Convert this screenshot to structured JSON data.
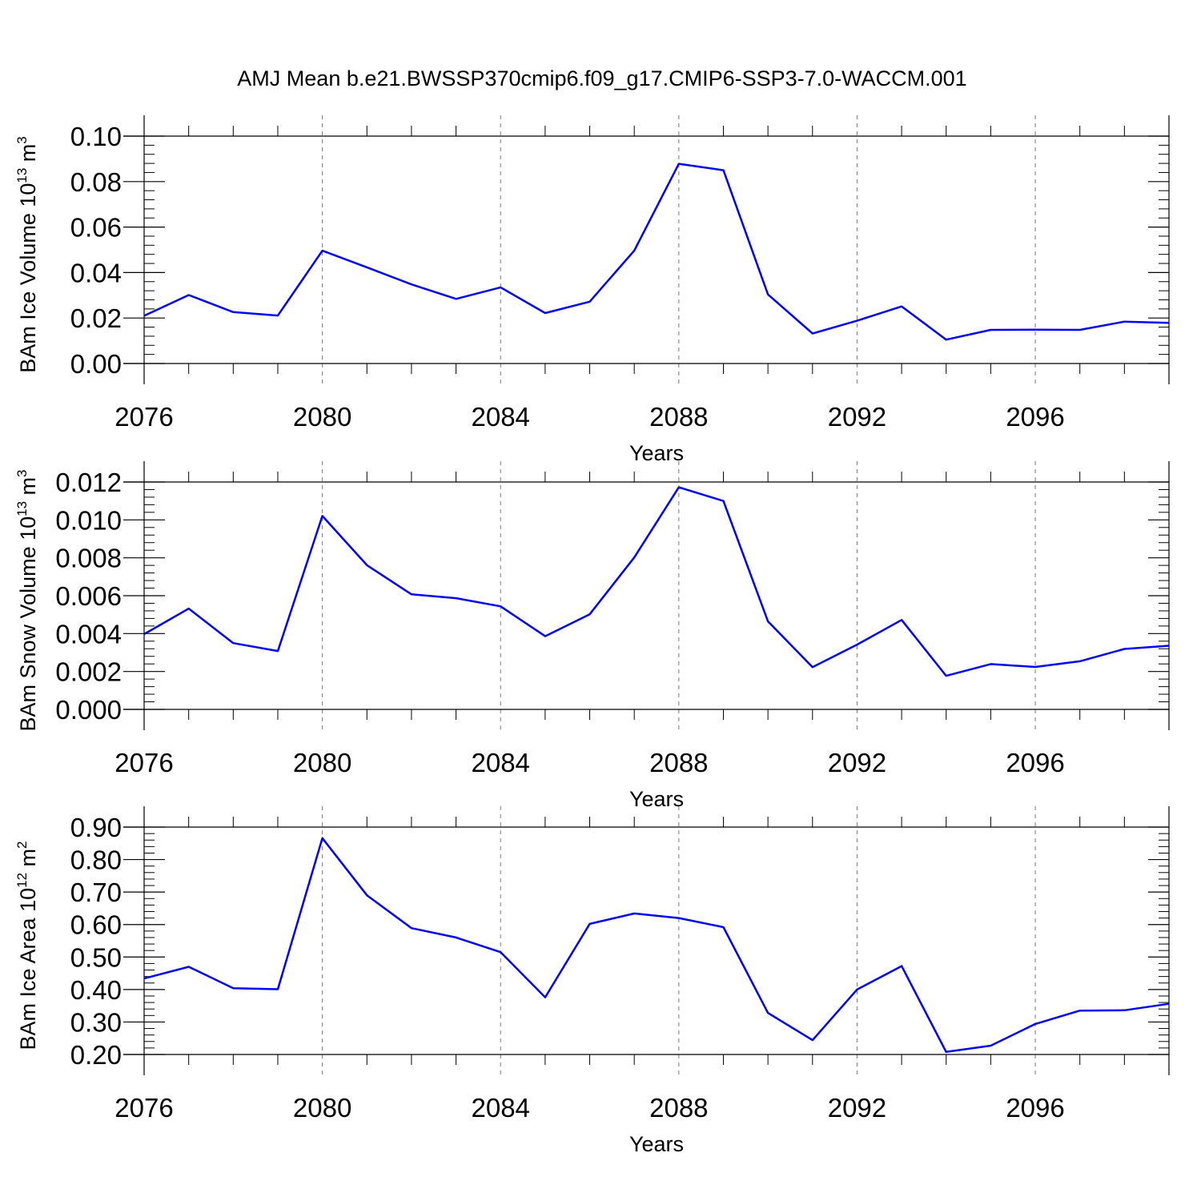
{
  "title": "AMJ Mean b.e21.BWSSP370cmip6.f09_g17.CMIP6-SSP3-7.0-WACCM.001",
  "line_color": "#0000ff",
  "chart_data": [
    {
      "type": "line",
      "title": "AMJ Mean b.e21.BWSSP370cmip6.f09_g17.CMIP6-SSP3-7.0-WACCM.001",
      "ylabel": "BAm Ice Volume 10",
      "ylabel_exp": "13",
      "ylabel_unit": " m",
      "ylabel_unit_exp": "3",
      "xlabel": "Years",
      "x": [
        2076,
        2077,
        2078,
        2079,
        2080,
        2081,
        2082,
        2083,
        2084,
        2085,
        2086,
        2087,
        2088,
        2089,
        2090,
        2091,
        2092,
        2093,
        2094,
        2095,
        2096,
        2097,
        2098,
        2099
      ],
      "values": [
        0.021,
        0.0301,
        0.0226,
        0.0211,
        0.0496,
        0.0423,
        0.0348,
        0.0284,
        0.0335,
        0.0222,
        0.0272,
        0.0497,
        0.0878,
        0.085,
        0.0304,
        0.0132,
        0.0188,
        0.0251,
        0.0105,
        0.0148,
        0.0149,
        0.0148,
        0.0184,
        0.0179
      ],
      "xlim": [
        2076,
        2099
      ],
      "ylim": [
        0,
        0.1
      ],
      "xticks": [
        "2076",
        "2080",
        "2084",
        "2088",
        "2092",
        "2096"
      ],
      "yticks": [
        "0.00",
        "0.02",
        "0.04",
        "0.06",
        "0.08",
        "0.10"
      ]
    },
    {
      "type": "line",
      "ylabel": "BAm Snow Volume 10",
      "ylabel_exp": "13",
      "ylabel_unit": " m",
      "ylabel_unit_exp": "3",
      "xlabel": "Years",
      "x": [
        2076,
        2077,
        2078,
        2079,
        2080,
        2081,
        2082,
        2083,
        2084,
        2085,
        2086,
        2087,
        2088,
        2089,
        2090,
        2091,
        2092,
        2093,
        2094,
        2095,
        2096,
        2097,
        2098,
        2099
      ],
      "values": [
        0.00397,
        0.00532,
        0.0035,
        0.00308,
        0.01021,
        0.00761,
        0.00607,
        0.00587,
        0.00544,
        0.00386,
        0.00502,
        0.00802,
        0.01172,
        0.011,
        0.00465,
        0.00223,
        0.00342,
        0.00472,
        0.00177,
        0.00239,
        0.00224,
        0.00254,
        0.00319,
        0.00336
      ],
      "xlim": [
        2076,
        2099
      ],
      "ylim": [
        0,
        0.012
      ],
      "xticks": [
        "2076",
        "2080",
        "2084",
        "2088",
        "2092",
        "2096"
      ],
      "yticks": [
        "0.000",
        "0.002",
        "0.004",
        "0.006",
        "0.008",
        "0.010",
        "0.012"
      ]
    },
    {
      "type": "line",
      "ylabel": "BAm Ice Area 10",
      "ylabel_exp": "12",
      "ylabel_unit": " m",
      "ylabel_unit_exp": "2",
      "xlabel": "Years",
      "x": [
        2076,
        2077,
        2078,
        2079,
        2080,
        2081,
        2082,
        2083,
        2084,
        2085,
        2086,
        2087,
        2088,
        2089,
        2090,
        2091,
        2092,
        2093,
        2094,
        2095,
        2096,
        2097,
        2098,
        2099
      ],
      "values": [
        0.434,
        0.47,
        0.404,
        0.401,
        0.866,
        0.69,
        0.589,
        0.56,
        0.515,
        0.376,
        0.602,
        0.634,
        0.62,
        0.592,
        0.328,
        0.244,
        0.4,
        0.472,
        0.208,
        0.227,
        0.294,
        0.335,
        0.336,
        0.356
      ],
      "xlim": [
        2076,
        2099
      ],
      "ylim": [
        0.2,
        0.9
      ],
      "xticks": [
        "2076",
        "2080",
        "2084",
        "2088",
        "2092",
        "2096"
      ],
      "yticks": [
        "0.20",
        "0.30",
        "0.40",
        "0.50",
        "0.60",
        "0.70",
        "0.80",
        "0.90"
      ]
    }
  ]
}
